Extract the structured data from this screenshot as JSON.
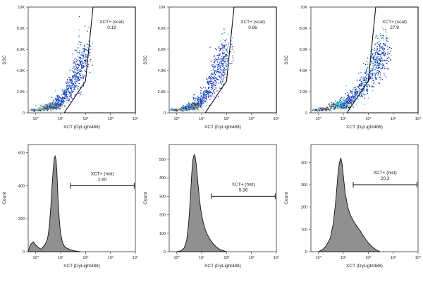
{
  "chart_data": [
    {
      "type": "scatter",
      "xlabel": "XCT (DyLight488)",
      "ylabel": "SSC",
      "xscale": "log",
      "xlim": [
        0.5,
        10000
      ],
      "ylim": [
        0,
        10000
      ],
      "x_ticks": [
        {
          "v": 1,
          "label": "10⁰"
        },
        {
          "v": 10,
          "label": "10¹"
        },
        {
          "v": 100,
          "label": "10²"
        },
        {
          "v": 1000,
          "label": "10³"
        },
        {
          "v": 10000,
          "label": "10⁴"
        }
      ],
      "y_ticks": [
        {
          "v": 0,
          "label": "0"
        },
        {
          "v": 2000,
          "label": "2.0K"
        },
        {
          "v": 4000,
          "label": "4.0K"
        },
        {
          "v": 6000,
          "label": "6.0K"
        },
        {
          "v": 8000,
          "label": "8.0K"
        },
        {
          "v": 10000,
          "label": "10K"
        }
      ],
      "gate": {
        "label": "XCT+ (scat)",
        "value": "0.19",
        "polygon": [
          [
            200,
            10000
          ],
          [
            10000,
            10000
          ],
          [
            10000,
            0
          ],
          [
            14,
            0
          ],
          [
            100,
            3000
          ],
          [
            200,
            10000
          ]
        ]
      },
      "points": [
        [
          2,
          400
        ],
        [
          3,
          600
        ],
        [
          5,
          800
        ],
        [
          8,
          1200
        ],
        [
          15,
          1800
        ],
        [
          25,
          2600
        ],
        [
          40,
          3600
        ],
        [
          60,
          4600
        ],
        [
          90,
          5600
        ],
        [
          1,
          300
        ],
        [
          4,
          500
        ],
        [
          6,
          700
        ]
      ],
      "colors": {
        "low": "#1a2bb8",
        "mid": "#2ec6d6",
        "high": "#f5d020",
        "peak": "#e83020"
      }
    },
    {
      "type": "scatter",
      "xlabel": "XCT (DyLight488)",
      "ylabel": "SSC",
      "xscale": "log",
      "xlim": [
        0.5,
        10000
      ],
      "ylim": [
        0,
        10000
      ],
      "x_ticks": [
        {
          "v": 1,
          "label": "10⁰"
        },
        {
          "v": 10,
          "label": "10¹"
        },
        {
          "v": 100,
          "label": "10²"
        },
        {
          "v": 1000,
          "label": "10³"
        },
        {
          "v": 10000,
          "label": "10⁴"
        }
      ],
      "y_ticks": [
        {
          "v": 0,
          "label": "0"
        },
        {
          "v": 2000,
          "label": "2.0K"
        },
        {
          "v": 4000,
          "label": "4.0K"
        },
        {
          "v": 6000,
          "label": "6.0K"
        },
        {
          "v": 8000,
          "label": "8.0K"
        },
        {
          "v": 10000,
          "label": "10K"
        }
      ],
      "gate": {
        "label": "XCT+ (scat)",
        "value": "0.66",
        "polygon": [
          [
            200,
            10000
          ],
          [
            10000,
            10000
          ],
          [
            10000,
            0
          ],
          [
            14,
            0
          ],
          [
            100,
            3000
          ],
          [
            200,
            10000
          ]
        ]
      },
      "points": [
        [
          2,
          400
        ],
        [
          3,
          600
        ],
        [
          5,
          800
        ],
        [
          8,
          1200
        ],
        [
          15,
          1900
        ],
        [
          25,
          2800
        ],
        [
          40,
          3800
        ],
        [
          60,
          4800
        ],
        [
          90,
          5700
        ],
        [
          1,
          300
        ],
        [
          4,
          500
        ],
        [
          6,
          700
        ]
      ],
      "colors": {
        "low": "#1a2bb8",
        "mid": "#2ec6d6",
        "high": "#f5d020",
        "peak": "#e83020"
      }
    },
    {
      "type": "scatter",
      "xlabel": "XCT (DyLight488)",
      "ylabel": "SSC",
      "xscale": "log",
      "xlim": [
        0.5,
        10000
      ],
      "ylim": [
        0,
        10000
      ],
      "x_ticks": [
        {
          "v": 1,
          "label": "10⁰"
        },
        {
          "v": 10,
          "label": "10¹"
        },
        {
          "v": 100,
          "label": "10²"
        },
        {
          "v": 1000,
          "label": "10³"
        },
        {
          "v": 10000,
          "label": "10⁴"
        }
      ],
      "y_ticks": [
        {
          "v": 0,
          "label": "0"
        },
        {
          "v": 2000,
          "label": "2.0K"
        },
        {
          "v": 4000,
          "label": "4.0K"
        },
        {
          "v": 6000,
          "label": "6.0K"
        },
        {
          "v": 8000,
          "label": "8.0K"
        },
        {
          "v": 10000,
          "label": "10K"
        }
      ],
      "gate": {
        "label": "XCT+ (scat)",
        "value": "27.8",
        "polygon": [
          [
            200,
            10000
          ],
          [
            10000,
            10000
          ],
          [
            10000,
            0
          ],
          [
            14,
            0
          ],
          [
            100,
            3000
          ],
          [
            200,
            10000
          ]
        ]
      },
      "points": [
        [
          2,
          400
        ],
        [
          4,
          700
        ],
        [
          8,
          900
        ],
        [
          15,
          1200
        ],
        [
          30,
          1800
        ],
        [
          60,
          2600
        ],
        [
          120,
          3600
        ],
        [
          200,
          4600
        ],
        [
          300,
          5600
        ],
        [
          400,
          5900
        ],
        [
          1,
          300
        ],
        [
          10,
          600
        ]
      ],
      "colors": {
        "low": "#1a2bb8",
        "mid": "#2ec6d6",
        "high": "#f5d020",
        "peak": "#e83020"
      }
    },
    {
      "type": "area",
      "xlabel": "XCT (DyLight488)",
      "ylabel": "Count",
      "xscale": "log",
      "xlim": [
        0.5,
        10000
      ],
      "ylim": [
        0,
        650
      ],
      "x_ticks": [
        {
          "v": 1,
          "label": "10⁰"
        },
        {
          "v": 10,
          "label": "10¹"
        },
        {
          "v": 100,
          "label": "10²"
        },
        {
          "v": 1000,
          "label": "10³"
        },
        {
          "v": 10000,
          "label": "10⁴"
        }
      ],
      "y_ticks": [
        {
          "v": 0,
          "label": "0"
        },
        {
          "v": 200,
          "label": "200"
        },
        {
          "v": 400,
          "label": "400"
        },
        {
          "v": 600,
          "label": "600"
        }
      ],
      "gate": {
        "label": "XCT+ (hist)",
        "value": "2.80",
        "range": [
          25,
          9000
        ],
        "level": 400
      },
      "x": [
        0.5,
        0.6,
        0.8,
        1,
        1.3,
        1.6,
        2,
        2.5,
        3,
        3.5,
        4,
        4.5,
        5,
        5.5,
        6,
        6.5,
        7,
        7.5,
        8,
        9,
        10,
        11,
        12,
        14,
        16,
        20,
        25,
        30,
        40,
        50,
        60
      ],
      "y": [
        0,
        40,
        60,
        40,
        25,
        15,
        30,
        50,
        80,
        150,
        260,
        390,
        490,
        560,
        580,
        560,
        500,
        400,
        300,
        180,
        110,
        80,
        55,
        35,
        25,
        18,
        12,
        8,
        4,
        2,
        0
      ],
      "fill": "#909090"
    },
    {
      "type": "area",
      "xlabel": "XCT (DyLight488)",
      "ylabel": "Count",
      "xscale": "log",
      "xlim": [
        0.5,
        10000
      ],
      "ylim": [
        0,
        580
      ],
      "x_ticks": [
        {
          "v": 1,
          "label": "10⁰"
        },
        {
          "v": 10,
          "label": "10¹"
        },
        {
          "v": 100,
          "label": "10²"
        },
        {
          "v": 1000,
          "label": "10³"
        },
        {
          "v": 10000,
          "label": "10⁴"
        }
      ],
      "y_ticks": [
        {
          "v": 0,
          "label": "0"
        },
        {
          "v": 100,
          "label": "100"
        },
        {
          "v": 200,
          "label": "200"
        },
        {
          "v": 300,
          "label": "300"
        },
        {
          "v": 400,
          "label": "400"
        },
        {
          "v": 500,
          "label": "500"
        }
      ],
      "gate": {
        "label": "XCT+ (hist)",
        "value": "5.36",
        "range": [
          25,
          9000
        ],
        "level": 300
      },
      "x": [
        1,
        1.5,
        2,
        2.5,
        3,
        3.5,
        4,
        4.5,
        5,
        5.5,
        6,
        6.5,
        7,
        8,
        9,
        10,
        12,
        14,
        16,
        20,
        25,
        30,
        40,
        50,
        60,
        80,
        100
      ],
      "y": [
        0,
        5,
        20,
        60,
        150,
        280,
        420,
        500,
        525,
        515,
        480,
        430,
        380,
        300,
        240,
        200,
        150,
        120,
        100,
        75,
        55,
        40,
        25,
        15,
        10,
        4,
        0
      ],
      "fill": "#909090"
    },
    {
      "type": "area",
      "xlabel": "XCT (DyLight488)",
      "ylabel": "Count",
      "xscale": "log",
      "xlim": [
        0.5,
        10000
      ],
      "ylim": [
        0,
        480
      ],
      "x_ticks": [
        {
          "v": 1,
          "label": "10⁰"
        },
        {
          "v": 10,
          "label": "10¹"
        },
        {
          "v": 100,
          "label": "10²"
        },
        {
          "v": 1000,
          "label": "10³"
        },
        {
          "v": 10000,
          "label": "10⁴"
        }
      ],
      "y_ticks": [
        {
          "v": 0,
          "label": "0"
        },
        {
          "v": 100,
          "label": "100"
        },
        {
          "v": 200,
          "label": "200"
        },
        {
          "v": 300,
          "label": "300"
        },
        {
          "v": 400,
          "label": "400"
        }
      ],
      "gate": {
        "label": "XCT+ (hist)",
        "value": "20.3",
        "range": [
          25,
          9000
        ],
        "level": 300
      },
      "x": [
        1,
        1.5,
        2,
        3,
        4,
        5,
        6,
        7,
        8,
        9,
        10,
        12,
        14,
        16,
        20,
        25,
        30,
        35,
        40,
        50,
        60,
        80,
        100,
        150,
        200,
        250,
        300
      ],
      "y": [
        0,
        10,
        25,
        60,
        130,
        230,
        340,
        400,
        420,
        390,
        340,
        260,
        220,
        190,
        160,
        140,
        125,
        115,
        105,
        90,
        75,
        55,
        40,
        20,
        10,
        4,
        0
      ],
      "fill": "#909090"
    }
  ]
}
